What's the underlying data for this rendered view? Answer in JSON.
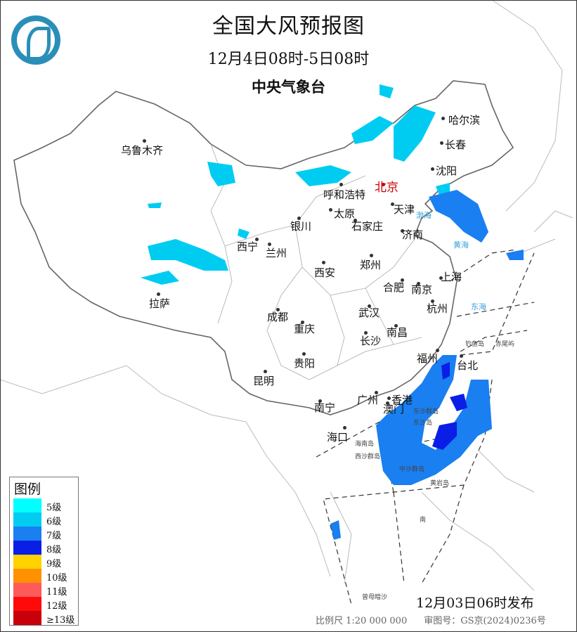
{
  "header": {
    "title": "全国大风预报图",
    "period": "12月4日08时-5日08时",
    "issuer": "中央气象台"
  },
  "logo": {
    "icon": "cma-logo-icon",
    "color": "#2a8fb8"
  },
  "cities": [
    {
      "name": "乌鲁木齐"
    },
    {
      "name": "哈尔滨"
    },
    {
      "name": "长春"
    },
    {
      "name": "沈阳"
    },
    {
      "name": "北京"
    },
    {
      "name": "呼和浩特"
    },
    {
      "name": "天津"
    },
    {
      "name": "太原"
    },
    {
      "name": "石家庄"
    },
    {
      "name": "银川"
    },
    {
      "name": "济南"
    },
    {
      "name": "西宁"
    },
    {
      "name": "兰州"
    },
    {
      "name": "西安"
    },
    {
      "name": "郑州"
    },
    {
      "name": "合肥"
    },
    {
      "name": "南京"
    },
    {
      "name": "上海"
    },
    {
      "name": "杭州"
    },
    {
      "name": "武汉"
    },
    {
      "name": "成都"
    },
    {
      "name": "重庆"
    },
    {
      "name": "拉萨"
    },
    {
      "name": "长沙"
    },
    {
      "name": "南昌"
    },
    {
      "name": "福州"
    },
    {
      "name": "台北"
    },
    {
      "name": "贵阳"
    },
    {
      "name": "昆明"
    },
    {
      "name": "广州"
    },
    {
      "name": "香港"
    },
    {
      "name": "澳门"
    },
    {
      "name": "南宁"
    },
    {
      "name": "海口"
    }
  ],
  "capital_color": "#cc0000",
  "seas": [
    "渤海",
    "黄海",
    "东海"
  ],
  "islands": [
    "钓鱼岛",
    "赤尾屿",
    "东沙群岛",
    "东沙岛",
    "海南岛",
    "西沙群岛",
    "中沙群岛",
    "黄岩岛",
    "曾母暗沙",
    "南"
  ],
  "legend": {
    "title": "图例",
    "items": [
      {
        "label": "5级",
        "color": "#00ffff"
      },
      {
        "label": "6级",
        "color": "#00ccf2"
      },
      {
        "label": "7级",
        "color": "#1a7ff0"
      },
      {
        "label": "8级",
        "color": "#0a1ee6"
      },
      {
        "label": "9级",
        "color": "#ffd200"
      },
      {
        "label": "10级",
        "color": "#ff9000"
      },
      {
        "label": "11级",
        "color": "#ff5a5a"
      },
      {
        "label": "12级",
        "color": "#ff0a0a"
      },
      {
        "label": "≥13级",
        "color": "#c8000a"
      }
    ]
  },
  "issue_time": "12月03日06时发布",
  "footer": {
    "scale": "比例尺 1:20 000 000",
    "map_number": "审图号：GS京(2024)0236号"
  }
}
